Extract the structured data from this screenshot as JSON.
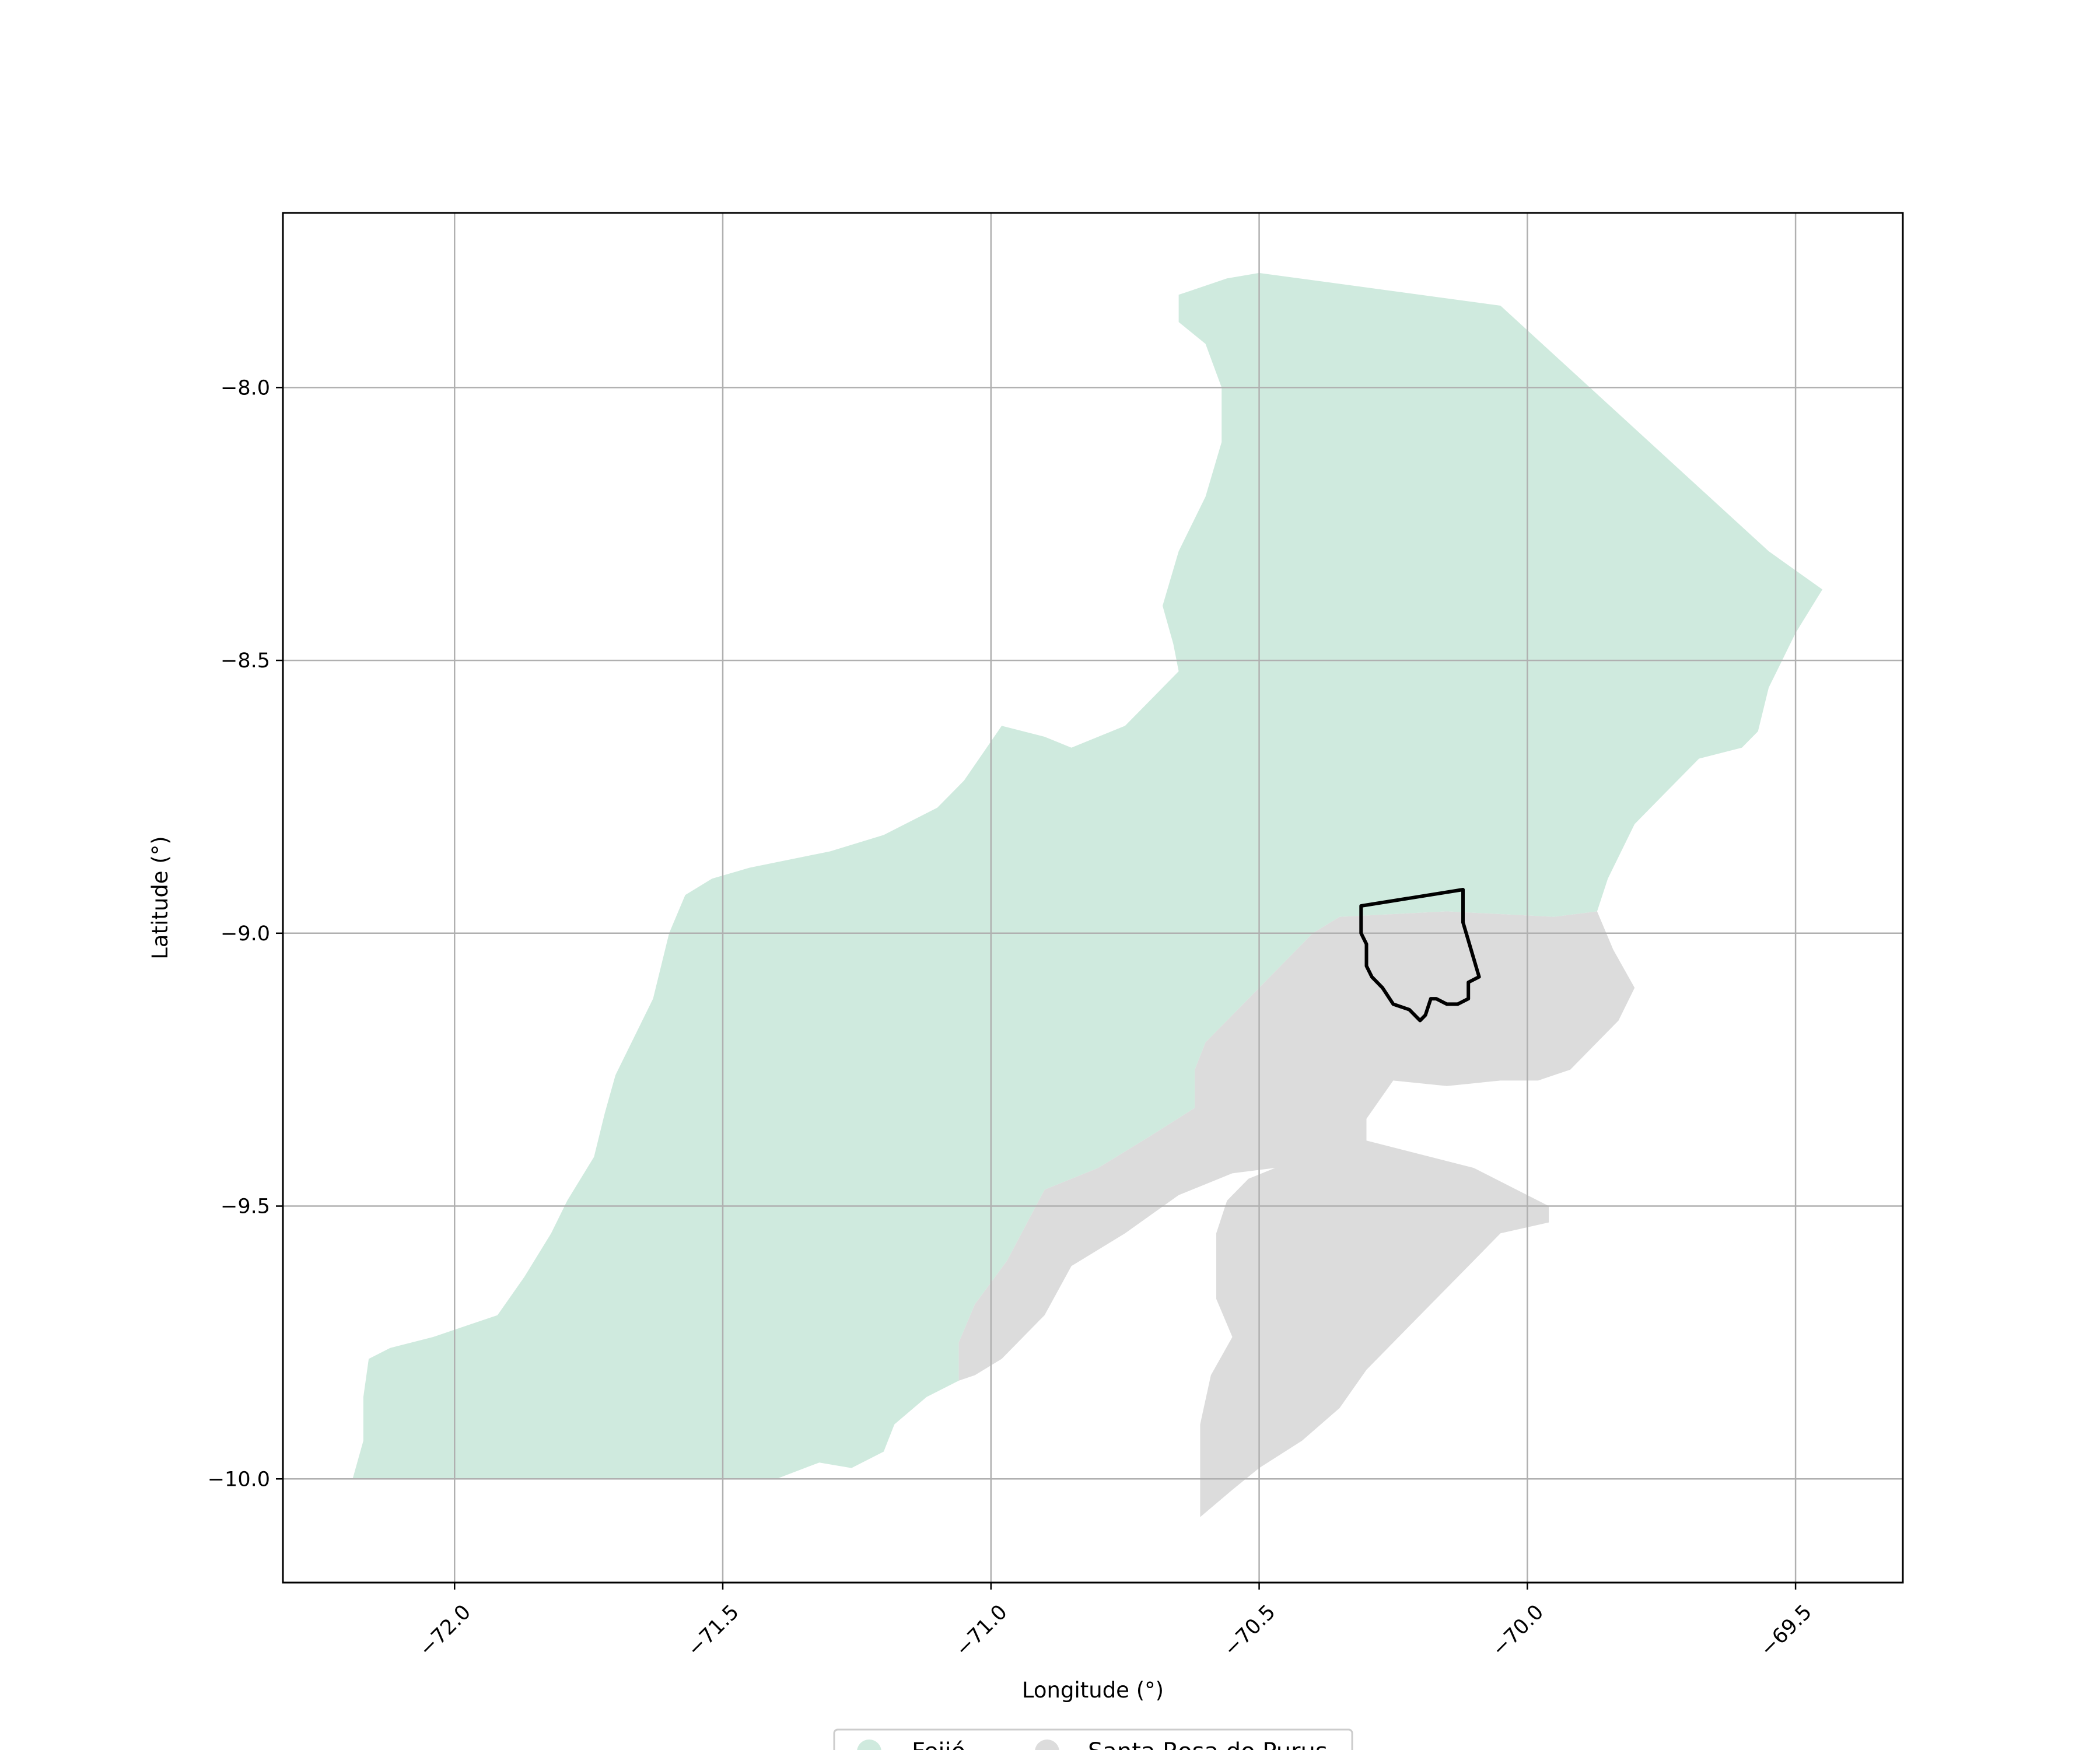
{
  "chart_data": {
    "type": "map",
    "xlabel": "Longitude (°)",
    "ylabel": "Latitude (°)",
    "xlim": [
      -72.32,
      -69.3
    ],
    "ylim": [
      -10.19,
      -7.68
    ],
    "x_ticks": [
      {
        "value": -72.0,
        "label": "−72.0"
      },
      {
        "value": -71.5,
        "label": "−71.5"
      },
      {
        "value": -71.0,
        "label": "−71.0"
      },
      {
        "value": -70.5,
        "label": "−70.5"
      },
      {
        "value": -70.0,
        "label": "−70.0"
      },
      {
        "value": -69.5,
        "label": "−69.5"
      }
    ],
    "y_ticks": [
      {
        "value": -8.0,
        "label": "−8.0"
      },
      {
        "value": -8.5,
        "label": "−8.5"
      },
      {
        "value": -9.0,
        "label": "−9.0"
      },
      {
        "value": -9.5,
        "label": "−9.5"
      },
      {
        "value": -10.0,
        "label": "−10.0"
      }
    ],
    "grid": true,
    "legend_position": "bottom-center",
    "regions": [
      {
        "name": "Feijó",
        "color": "#cfeade",
        "coords": [
          [
            -70.5,
            -7.79
          ],
          [
            -70.05,
            -7.85
          ],
          [
            -69.55,
            -8.3
          ],
          [
            -69.45,
            -8.37
          ],
          [
            -69.5,
            -8.45
          ],
          [
            -69.55,
            -8.55
          ],
          [
            -69.57,
            -8.63
          ],
          [
            -69.6,
            -8.66
          ],
          [
            -69.68,
            -8.68
          ],
          [
            -69.75,
            -8.75
          ],
          [
            -69.8,
            -8.8
          ],
          [
            -69.85,
            -8.9
          ],
          [
            -69.87,
            -8.96
          ],
          [
            -69.95,
            -8.97
          ],
          [
            -70.15,
            -8.96
          ],
          [
            -70.35,
            -8.97
          ],
          [
            -70.4,
            -9.0
          ],
          [
            -70.45,
            -9.05
          ],
          [
            -70.5,
            -9.1
          ],
          [
            -70.55,
            -9.15
          ],
          [
            -70.6,
            -9.2
          ],
          [
            -70.62,
            -9.25
          ],
          [
            -70.62,
            -9.32
          ],
          [
            -70.7,
            -9.37
          ],
          [
            -70.8,
            -9.43
          ],
          [
            -70.9,
            -9.47
          ],
          [
            -70.97,
            -9.6
          ],
          [
            -71.03,
            -9.68
          ],
          [
            -71.06,
            -9.75
          ],
          [
            -71.06,
            -9.82
          ],
          [
            -71.12,
            -9.85
          ],
          [
            -71.18,
            -9.9
          ],
          [
            -71.2,
            -9.95
          ],
          [
            -71.26,
            -9.98
          ],
          [
            -71.32,
            -9.97
          ],
          [
            -71.4,
            -10.0
          ],
          [
            -72.19,
            -10.0
          ],
          [
            -72.17,
            -9.93
          ],
          [
            -72.17,
            -9.85
          ],
          [
            -72.16,
            -9.78
          ],
          [
            -72.12,
            -9.76
          ],
          [
            -72.04,
            -9.74
          ],
          [
            -71.98,
            -9.72
          ],
          [
            -71.92,
            -9.7
          ],
          [
            -71.87,
            -9.63
          ],
          [
            -71.82,
            -9.55
          ],
          [
            -71.79,
            -9.49
          ],
          [
            -71.74,
            -9.41
          ],
          [
            -71.72,
            -9.33
          ],
          [
            -71.7,
            -9.26
          ],
          [
            -71.67,
            -9.2
          ],
          [
            -71.63,
            -9.12
          ],
          [
            -71.6,
            -9.0
          ],
          [
            -71.57,
            -8.93
          ],
          [
            -71.52,
            -8.9
          ],
          [
            -71.45,
            -8.88
          ],
          [
            -71.3,
            -8.85
          ],
          [
            -71.2,
            -8.82
          ],
          [
            -71.1,
            -8.77
          ],
          [
            -71.05,
            -8.72
          ],
          [
            -70.98,
            -8.62
          ],
          [
            -70.9,
            -8.64
          ],
          [
            -70.85,
            -8.66
          ],
          [
            -70.75,
            -8.62
          ],
          [
            -70.7,
            -8.57
          ],
          [
            -70.65,
            -8.52
          ],
          [
            -70.66,
            -8.47
          ],
          [
            -70.68,
            -8.4
          ],
          [
            -70.65,
            -8.3
          ],
          [
            -70.6,
            -8.2
          ],
          [
            -70.57,
            -8.1
          ],
          [
            -70.57,
            -8.0
          ],
          [
            -70.6,
            -7.92
          ],
          [
            -70.65,
            -7.88
          ],
          [
            -70.65,
            -7.83
          ],
          [
            -70.56,
            -7.8
          ]
        ]
      },
      {
        "name": "Santa Rosa do Purus",
        "color": "#dcdcdc",
        "coords": [
          [
            -70.35,
            -8.97
          ],
          [
            -70.15,
            -8.96
          ],
          [
            -69.95,
            -8.97
          ],
          [
            -69.87,
            -8.96
          ],
          [
            -69.84,
            -9.03
          ],
          [
            -69.8,
            -9.1
          ],
          [
            -69.83,
            -9.16
          ],
          [
            -69.87,
            -9.2
          ],
          [
            -69.92,
            -9.25
          ],
          [
            -69.98,
            -9.27
          ],
          [
            -70.05,
            -9.27
          ],
          [
            -70.15,
            -9.28
          ],
          [
            -70.25,
            -9.27
          ],
          [
            -70.3,
            -9.34
          ],
          [
            -70.3,
            -9.38
          ],
          [
            -70.1,
            -9.43
          ],
          [
            -69.96,
            -9.5
          ],
          [
            -69.96,
            -9.53
          ],
          [
            -70.05,
            -9.55
          ],
          [
            -70.1,
            -9.6
          ],
          [
            -70.2,
            -9.7
          ],
          [
            -70.3,
            -9.8
          ],
          [
            -70.35,
            -9.87
          ],
          [
            -70.42,
            -9.93
          ],
          [
            -70.5,
            -9.98
          ],
          [
            -70.55,
            -10.02
          ],
          [
            -70.61,
            -10.07
          ],
          [
            -70.61,
            -9.9
          ],
          [
            -70.59,
            -9.81
          ],
          [
            -70.55,
            -9.74
          ],
          [
            -70.58,
            -9.67
          ],
          [
            -70.58,
            -9.55
          ],
          [
            -70.56,
            -9.49
          ],
          [
            -70.52,
            -9.45
          ],
          [
            -70.47,
            -9.43
          ],
          [
            -70.55,
            -9.44
          ],
          [
            -70.65,
            -9.48
          ],
          [
            -70.75,
            -9.55
          ],
          [
            -70.85,
            -9.61
          ],
          [
            -70.9,
            -9.7
          ],
          [
            -70.98,
            -9.78
          ],
          [
            -71.03,
            -9.81
          ],
          [
            -71.06,
            -9.82
          ],
          [
            -71.06,
            -9.75
          ],
          [
            -71.03,
            -9.68
          ],
          [
            -70.97,
            -9.6
          ],
          [
            -70.9,
            -9.47
          ],
          [
            -70.8,
            -9.43
          ],
          [
            -70.7,
            -9.37
          ],
          [
            -70.62,
            -9.32
          ],
          [
            -70.62,
            -9.25
          ],
          [
            -70.6,
            -9.2
          ],
          [
            -70.55,
            -9.15
          ],
          [
            -70.5,
            -9.1
          ],
          [
            -70.45,
            -9.05
          ],
          [
            -70.4,
            -9.0
          ]
        ]
      }
    ],
    "outline": {
      "color": "#000000",
      "coords": [
        [
          -70.31,
          -8.95
        ],
        [
          -70.12,
          -8.92
        ],
        [
          -70.12,
          -8.98
        ],
        [
          -70.09,
          -9.08
        ],
        [
          -70.11,
          -9.09
        ],
        [
          -70.11,
          -9.12
        ],
        [
          -70.13,
          -9.13
        ],
        [
          -70.15,
          -9.13
        ],
        [
          -70.17,
          -9.12
        ],
        [
          -70.18,
          -9.12
        ],
        [
          -70.19,
          -9.15
        ],
        [
          -70.2,
          -9.16
        ],
        [
          -70.22,
          -9.14
        ],
        [
          -70.25,
          -9.13
        ],
        [
          -70.27,
          -9.1
        ],
        [
          -70.29,
          -9.08
        ],
        [
          -70.3,
          -9.06
        ],
        [
          -70.3,
          -9.02
        ],
        [
          -70.31,
          -9.0
        ],
        [
          -70.31,
          -8.95
        ]
      ]
    }
  },
  "legend": {
    "items": [
      {
        "label": "Feijó",
        "color": "#cfeade"
      },
      {
        "label": "Santa Rosa do Purus",
        "color": "#dcdcdc"
      }
    ]
  }
}
